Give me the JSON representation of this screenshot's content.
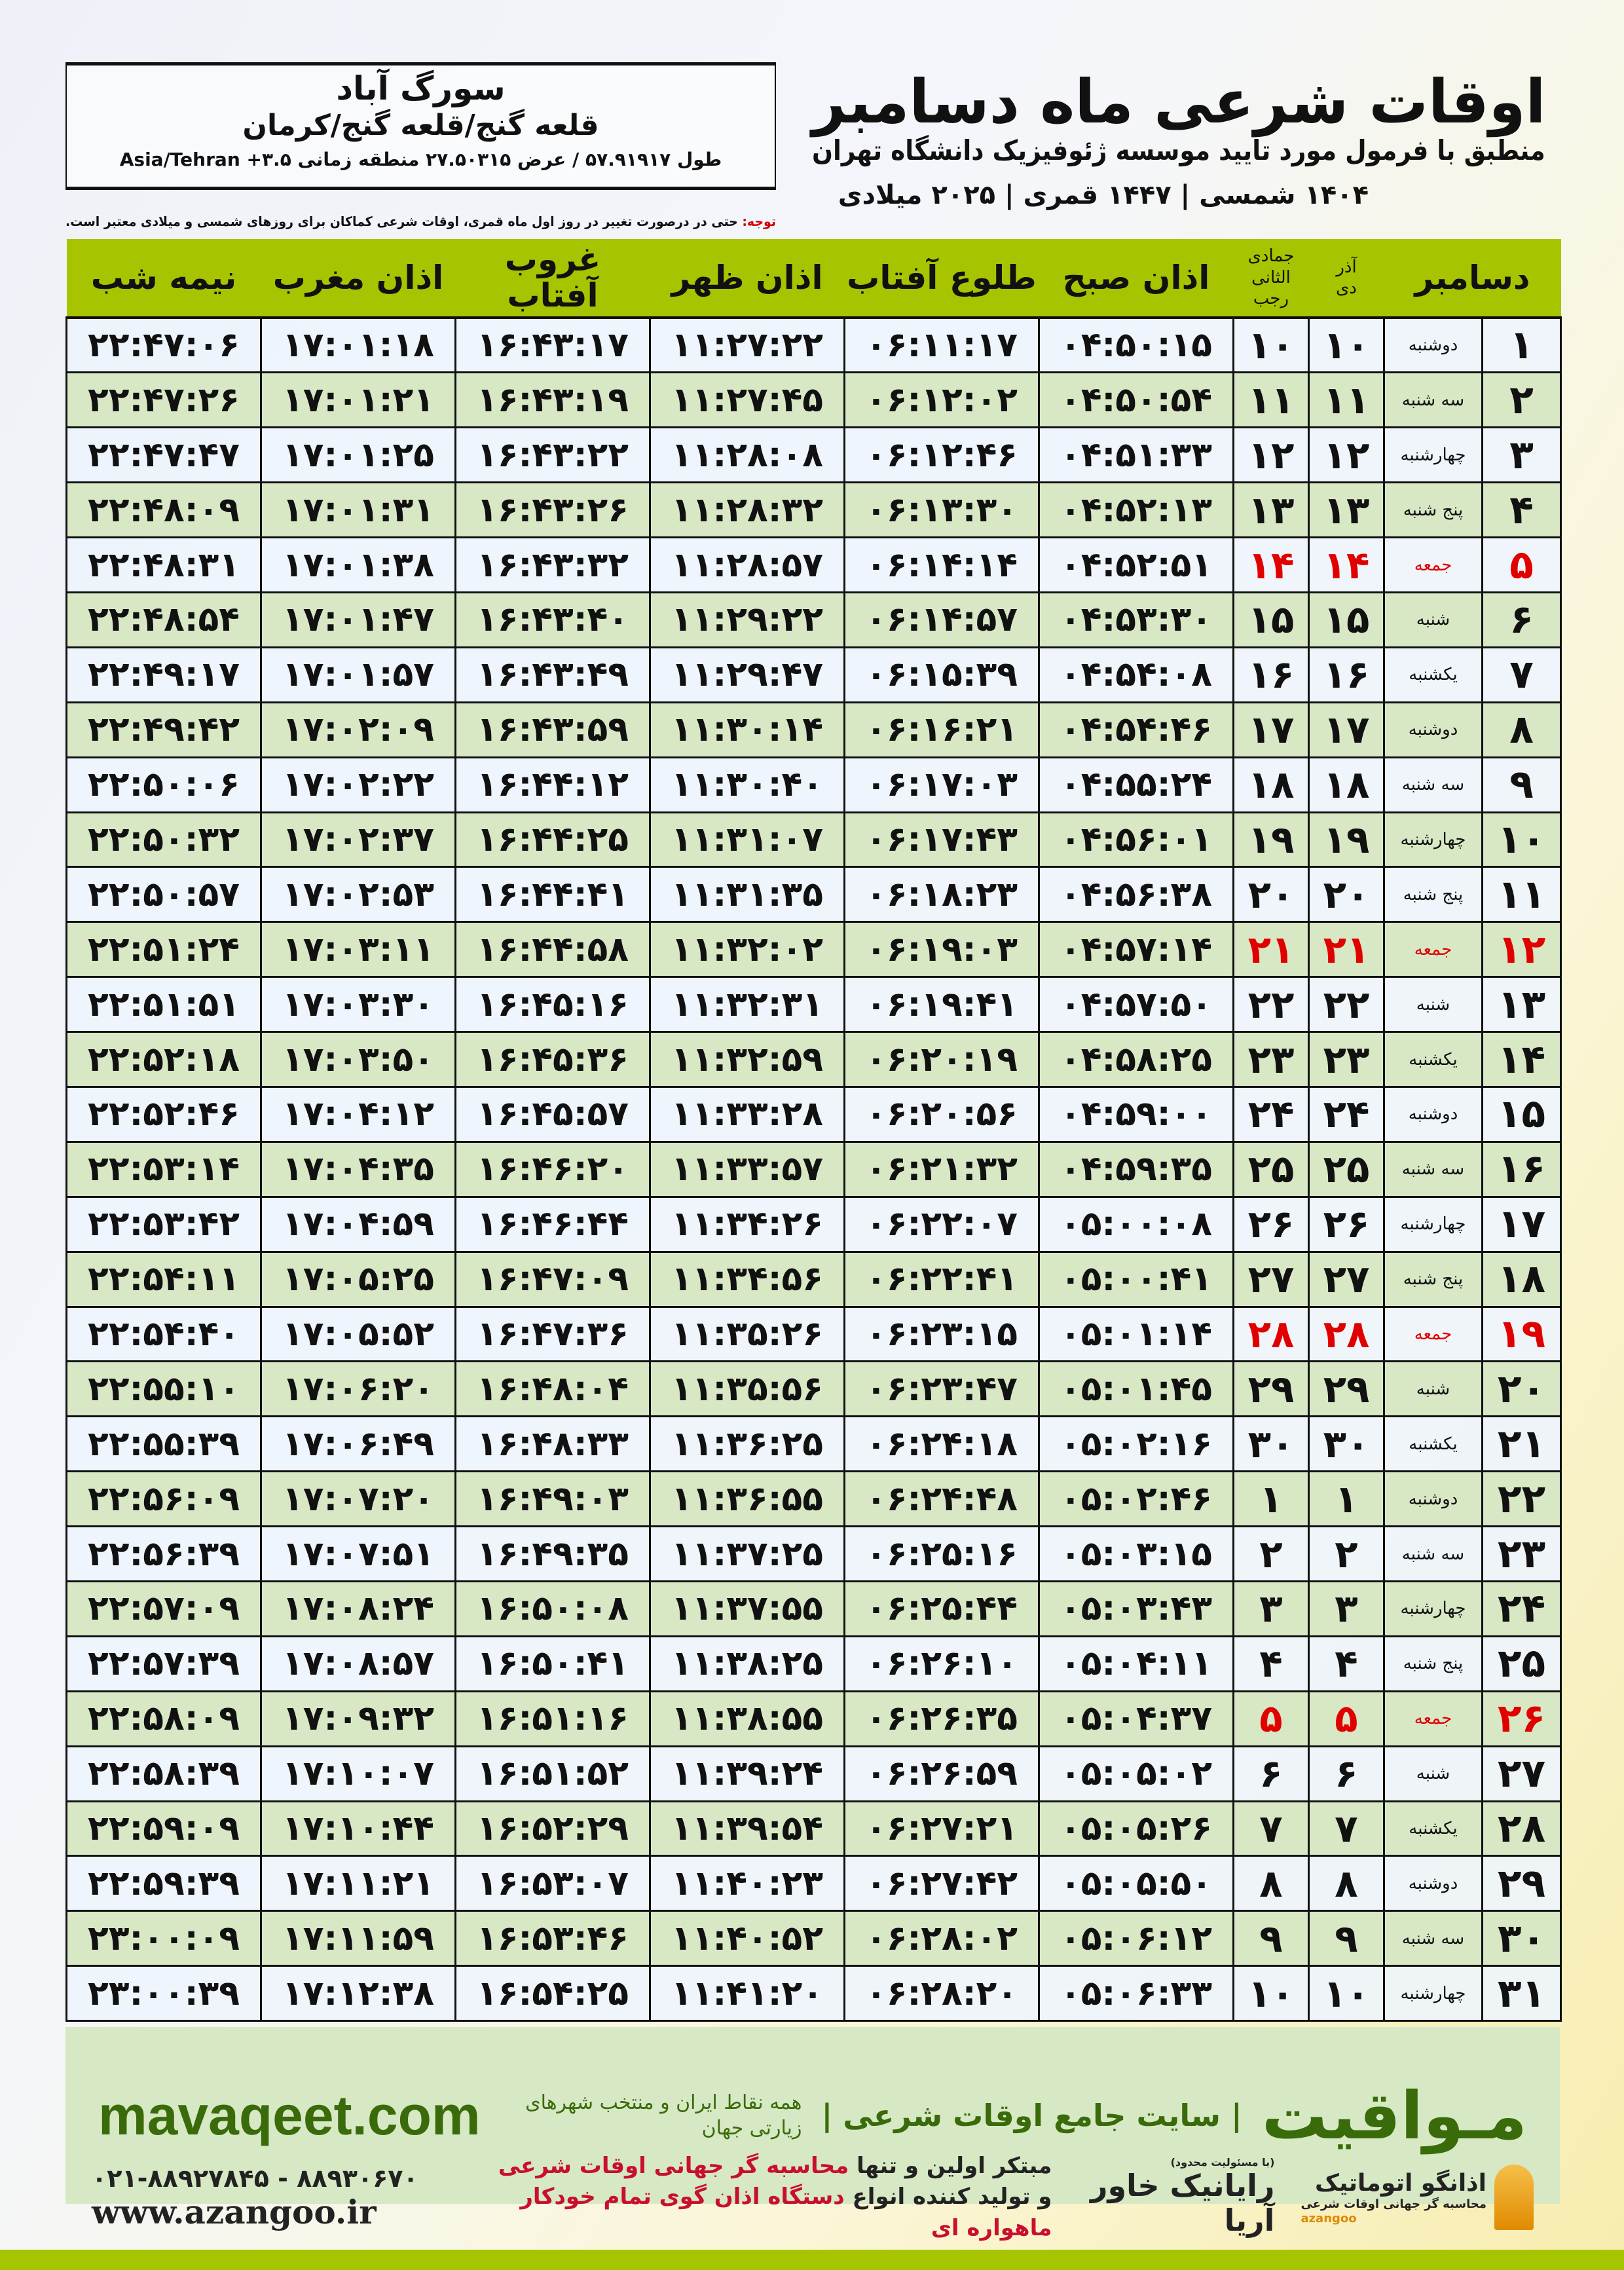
{
  "header": {
    "title": "اوقات شرعی ماه دسامبر",
    "subtitle": "منطبق با فرمول مورد تایید موسسه ژئوفیزیک دانشگاه تهران",
    "dates": "۱۴۰۴ شمسی | ۱۴۴۷ قمری | ۲۰۲۵ میلادی"
  },
  "location": {
    "city": "سورگ آباد",
    "province": "قلعه گنج/قلعه گنج/کرمان",
    "coords": "طول ۵۷.۹۱۹۱۷ / عرض ۲۷.۵۰۳۱۵ منطقه زمانی ۳.۵+ Asia/Tehran"
  },
  "note": {
    "label": "توجه:",
    "text": " حتی در درصورت تغییر در روز اول ماه قمری، اوقات شرعی کماکان برای روزهای شمسی و میلادی معتبر است."
  },
  "table": {
    "headers": {
      "month": "دسامبر",
      "solar_top": "آذر",
      "solar_bottom": "دی",
      "lunar_top": "جمادی الثانی",
      "lunar_bottom": "رجب",
      "fajr": "اذان صبح",
      "sunrise": "طلوع آفتاب",
      "dhuhr": "اذان ظهر",
      "sunset": "غروب آفتاب",
      "maghrib": "اذان مغرب",
      "midnight": "نیمه شب"
    },
    "holiday_color": "#e00000",
    "rows": [
      {
        "day": "۱",
        "weekday": "دوشنبه",
        "solar": "۱۰",
        "lunar": "۱۰",
        "fajr": "۰۴:۵۰:۱۵",
        "sunrise": "۰۶:۱۱:۱۷",
        "dhuhr": "۱۱:۲۷:۲۲",
        "sunset": "۱۶:۴۳:۱۷",
        "maghrib": "۱۷:۰۱:۱۸",
        "midnight": "۲۲:۴۷:۰۶"
      },
      {
        "day": "۲",
        "weekday": "سه شنبه",
        "solar": "۱۱",
        "lunar": "۱۱",
        "fajr": "۰۴:۵۰:۵۴",
        "sunrise": "۰۶:۱۲:۰۲",
        "dhuhr": "۱۱:۲۷:۴۵",
        "sunset": "۱۶:۴۳:۱۹",
        "maghrib": "۱۷:۰۱:۲۱",
        "midnight": "۲۲:۴۷:۲۶"
      },
      {
        "day": "۳",
        "weekday": "چهارشنبه",
        "solar": "۱۲",
        "lunar": "۱۲",
        "fajr": "۰۴:۵۱:۳۳",
        "sunrise": "۰۶:۱۲:۴۶",
        "dhuhr": "۱۱:۲۸:۰۸",
        "sunset": "۱۶:۴۳:۲۲",
        "maghrib": "۱۷:۰۱:۲۵",
        "midnight": "۲۲:۴۷:۴۷"
      },
      {
        "day": "۴",
        "weekday": "پنج شنبه",
        "solar": "۱۳",
        "lunar": "۱۳",
        "fajr": "۰۴:۵۲:۱۳",
        "sunrise": "۰۶:۱۳:۳۰",
        "dhuhr": "۱۱:۲۸:۳۲",
        "sunset": "۱۶:۴۳:۲۶",
        "maghrib": "۱۷:۰۱:۳۱",
        "midnight": "۲۲:۴۸:۰۹"
      },
      {
        "day": "۵",
        "weekday": "جمعه",
        "holiday": true,
        "solar": "۱۴",
        "lunar": "۱۴",
        "fajr": "۰۴:۵۲:۵۱",
        "sunrise": "۰۶:۱۴:۱۴",
        "dhuhr": "۱۱:۲۸:۵۷",
        "sunset": "۱۶:۴۳:۳۲",
        "maghrib": "۱۷:۰۱:۳۸",
        "midnight": "۲۲:۴۸:۳۱"
      },
      {
        "day": "۶",
        "weekday": "شنبه",
        "solar": "۱۵",
        "lunar": "۱۵",
        "fajr": "۰۴:۵۳:۳۰",
        "sunrise": "۰۶:۱۴:۵۷",
        "dhuhr": "۱۱:۲۹:۲۲",
        "sunset": "۱۶:۴۳:۴۰",
        "maghrib": "۱۷:۰۱:۴۷",
        "midnight": "۲۲:۴۸:۵۴"
      },
      {
        "day": "۷",
        "weekday": "یکشنبه",
        "solar": "۱۶",
        "lunar": "۱۶",
        "fajr": "۰۴:۵۴:۰۸",
        "sunrise": "۰۶:۱۵:۳۹",
        "dhuhr": "۱۱:۲۹:۴۷",
        "sunset": "۱۶:۴۳:۴۹",
        "maghrib": "۱۷:۰۱:۵۷",
        "midnight": "۲۲:۴۹:۱۷"
      },
      {
        "day": "۸",
        "weekday": "دوشنبه",
        "solar": "۱۷",
        "lunar": "۱۷",
        "fajr": "۰۴:۵۴:۴۶",
        "sunrise": "۰۶:۱۶:۲۱",
        "dhuhr": "۱۱:۳۰:۱۴",
        "sunset": "۱۶:۴۳:۵۹",
        "maghrib": "۱۷:۰۲:۰۹",
        "midnight": "۲۲:۴۹:۴۲"
      },
      {
        "day": "۹",
        "weekday": "سه شنبه",
        "solar": "۱۸",
        "lunar": "۱۸",
        "fajr": "۰۴:۵۵:۲۴",
        "sunrise": "۰۶:۱۷:۰۳",
        "dhuhr": "۱۱:۳۰:۴۰",
        "sunset": "۱۶:۴۴:۱۲",
        "maghrib": "۱۷:۰۲:۲۲",
        "midnight": "۲۲:۵۰:۰۶"
      },
      {
        "day": "۱۰",
        "weekday": "چهارشنبه",
        "solar": "۱۹",
        "lunar": "۱۹",
        "fajr": "۰۴:۵۶:۰۱",
        "sunrise": "۰۶:۱۷:۴۳",
        "dhuhr": "۱۱:۳۱:۰۷",
        "sunset": "۱۶:۴۴:۲۵",
        "maghrib": "۱۷:۰۲:۳۷",
        "midnight": "۲۲:۵۰:۳۲"
      },
      {
        "day": "۱۱",
        "weekday": "پنج شنبه",
        "solar": "۲۰",
        "lunar": "۲۰",
        "fajr": "۰۴:۵۶:۳۸",
        "sunrise": "۰۶:۱۸:۲۳",
        "dhuhr": "۱۱:۳۱:۳۵",
        "sunset": "۱۶:۴۴:۴۱",
        "maghrib": "۱۷:۰۲:۵۳",
        "midnight": "۲۲:۵۰:۵۷"
      },
      {
        "day": "۱۲",
        "weekday": "جمعه",
        "holiday": true,
        "solar": "۲۱",
        "lunar": "۲۱",
        "fajr": "۰۴:۵۷:۱۴",
        "sunrise": "۰۶:۱۹:۰۳",
        "dhuhr": "۱۱:۳۲:۰۲",
        "sunset": "۱۶:۴۴:۵۸",
        "maghrib": "۱۷:۰۳:۱۱",
        "midnight": "۲۲:۵۱:۲۴"
      },
      {
        "day": "۱۳",
        "weekday": "شنبه",
        "solar": "۲۲",
        "lunar": "۲۲",
        "fajr": "۰۴:۵۷:۵۰",
        "sunrise": "۰۶:۱۹:۴۱",
        "dhuhr": "۱۱:۳۲:۳۱",
        "sunset": "۱۶:۴۵:۱۶",
        "maghrib": "۱۷:۰۳:۳۰",
        "midnight": "۲۲:۵۱:۵۱"
      },
      {
        "day": "۱۴",
        "weekday": "یکشنبه",
        "solar": "۲۳",
        "lunar": "۲۳",
        "fajr": "۰۴:۵۸:۲۵",
        "sunrise": "۰۶:۲۰:۱۹",
        "dhuhr": "۱۱:۳۲:۵۹",
        "sunset": "۱۶:۴۵:۳۶",
        "maghrib": "۱۷:۰۳:۵۰",
        "midnight": "۲۲:۵۲:۱۸"
      },
      {
        "day": "۱۵",
        "weekday": "دوشنبه",
        "solar": "۲۴",
        "lunar": "۲۴",
        "fajr": "۰۴:۵۹:۰۰",
        "sunrise": "۰۶:۲۰:۵۶",
        "dhuhr": "۱۱:۳۳:۲۸",
        "sunset": "۱۶:۴۵:۵۷",
        "maghrib": "۱۷:۰۴:۱۲",
        "midnight": "۲۲:۵۲:۴۶"
      },
      {
        "day": "۱۶",
        "weekday": "سه شنبه",
        "solar": "۲۵",
        "lunar": "۲۵",
        "fajr": "۰۴:۵۹:۳۵",
        "sunrise": "۰۶:۲۱:۳۲",
        "dhuhr": "۱۱:۳۳:۵۷",
        "sunset": "۱۶:۴۶:۲۰",
        "maghrib": "۱۷:۰۴:۳۵",
        "midnight": "۲۲:۵۳:۱۴"
      },
      {
        "day": "۱۷",
        "weekday": "چهارشنبه",
        "solar": "۲۶",
        "lunar": "۲۶",
        "fajr": "۰۵:۰۰:۰۸",
        "sunrise": "۰۶:۲۲:۰۷",
        "dhuhr": "۱۱:۳۴:۲۶",
        "sunset": "۱۶:۴۶:۴۴",
        "maghrib": "۱۷:۰۴:۵۹",
        "midnight": "۲۲:۵۳:۴۲"
      },
      {
        "day": "۱۸",
        "weekday": "پنج شنبه",
        "solar": "۲۷",
        "lunar": "۲۷",
        "fajr": "۰۵:۰۰:۴۱",
        "sunrise": "۰۶:۲۲:۴۱",
        "dhuhr": "۱۱:۳۴:۵۶",
        "sunset": "۱۶:۴۷:۰۹",
        "maghrib": "۱۷:۰۵:۲۵",
        "midnight": "۲۲:۵۴:۱۱"
      },
      {
        "day": "۱۹",
        "weekday": "جمعه",
        "holiday": true,
        "solar": "۲۸",
        "lunar": "۲۸",
        "fajr": "۰۵:۰۱:۱۴",
        "sunrise": "۰۶:۲۳:۱۵",
        "dhuhr": "۱۱:۳۵:۲۶",
        "sunset": "۱۶:۴۷:۳۶",
        "maghrib": "۱۷:۰۵:۵۲",
        "midnight": "۲۲:۵۴:۴۰"
      },
      {
        "day": "۲۰",
        "weekday": "شنبه",
        "solar": "۲۹",
        "lunar": "۲۹",
        "fajr": "۰۵:۰۱:۴۵",
        "sunrise": "۰۶:۲۳:۴۷",
        "dhuhr": "۱۱:۳۵:۵۶",
        "sunset": "۱۶:۴۸:۰۴",
        "maghrib": "۱۷:۰۶:۲۰",
        "midnight": "۲۲:۵۵:۱۰"
      },
      {
        "day": "۲۱",
        "weekday": "یکشنبه",
        "solar": "۳۰",
        "lunar": "۳۰",
        "fajr": "۰۵:۰۲:۱۶",
        "sunrise": "۰۶:۲۴:۱۸",
        "dhuhr": "۱۱:۳۶:۲۵",
        "sunset": "۱۶:۴۸:۳۳",
        "maghrib": "۱۷:۰۶:۴۹",
        "midnight": "۲۲:۵۵:۳۹"
      },
      {
        "day": "۲۲",
        "weekday": "دوشنبه",
        "solar": "۱",
        "lunar": "۱",
        "fajr": "۰۵:۰۲:۴۶",
        "sunrise": "۰۶:۲۴:۴۸",
        "dhuhr": "۱۱:۳۶:۵۵",
        "sunset": "۱۶:۴۹:۰۳",
        "maghrib": "۱۷:۰۷:۲۰",
        "midnight": "۲۲:۵۶:۰۹"
      },
      {
        "day": "۲۳",
        "weekday": "سه شنبه",
        "solar": "۲",
        "lunar": "۲",
        "fajr": "۰۵:۰۳:۱۵",
        "sunrise": "۰۶:۲۵:۱۶",
        "dhuhr": "۱۱:۳۷:۲۵",
        "sunset": "۱۶:۴۹:۳۵",
        "maghrib": "۱۷:۰۷:۵۱",
        "midnight": "۲۲:۵۶:۳۹"
      },
      {
        "day": "۲۴",
        "weekday": "چهارشنبه",
        "solar": "۳",
        "lunar": "۳",
        "fajr": "۰۵:۰۳:۴۳",
        "sunrise": "۰۶:۲۵:۴۴",
        "dhuhr": "۱۱:۳۷:۵۵",
        "sunset": "۱۶:۵۰:۰۸",
        "maghrib": "۱۷:۰۸:۲۴",
        "midnight": "۲۲:۵۷:۰۹"
      },
      {
        "day": "۲۵",
        "weekday": "پنج شنبه",
        "solar": "۴",
        "lunar": "۴",
        "fajr": "۰۵:۰۴:۱۱",
        "sunrise": "۰۶:۲۶:۱۰",
        "dhuhr": "۱۱:۳۸:۲۵",
        "sunset": "۱۶:۵۰:۴۱",
        "maghrib": "۱۷:۰۸:۵۷",
        "midnight": "۲۲:۵۷:۳۹"
      },
      {
        "day": "۲۶",
        "weekday": "جمعه",
        "holiday": true,
        "solar": "۵",
        "lunar": "۵",
        "fajr": "۰۵:۰۴:۳۷",
        "sunrise": "۰۶:۲۶:۳۵",
        "dhuhr": "۱۱:۳۸:۵۵",
        "sunset": "۱۶:۵۱:۱۶",
        "maghrib": "۱۷:۰۹:۳۲",
        "midnight": "۲۲:۵۸:۰۹"
      },
      {
        "day": "۲۷",
        "weekday": "شنبه",
        "solar": "۶",
        "lunar": "۶",
        "fajr": "۰۵:۰۵:۰۲",
        "sunrise": "۰۶:۲۶:۵۹",
        "dhuhr": "۱۱:۳۹:۲۴",
        "sunset": "۱۶:۵۱:۵۲",
        "maghrib": "۱۷:۱۰:۰۷",
        "midnight": "۲۲:۵۸:۳۹"
      },
      {
        "day": "۲۸",
        "weekday": "یکشنبه",
        "solar": "۷",
        "lunar": "۷",
        "fajr": "۰۵:۰۵:۲۶",
        "sunrise": "۰۶:۲۷:۲۱",
        "dhuhr": "۱۱:۳۹:۵۴",
        "sunset": "۱۶:۵۲:۲۹",
        "maghrib": "۱۷:۱۰:۴۴",
        "midnight": "۲۲:۵۹:۰۹"
      },
      {
        "day": "۲۹",
        "weekday": "دوشنبه",
        "solar": "۸",
        "lunar": "۸",
        "fajr": "۰۵:۰۵:۵۰",
        "sunrise": "۰۶:۲۷:۴۲",
        "dhuhr": "۱۱:۴۰:۲۳",
        "sunset": "۱۶:۵۳:۰۷",
        "maghrib": "۱۷:۱۱:۲۱",
        "midnight": "۲۲:۵۹:۳۹"
      },
      {
        "day": "۳۰",
        "weekday": "سه شنبه",
        "solar": "۹",
        "lunar": "۹",
        "fajr": "۰۵:۰۶:۱۲",
        "sunrise": "۰۶:۲۸:۰۲",
        "dhuhr": "۱۱:۴۰:۵۲",
        "sunset": "۱۶:۵۳:۴۶",
        "maghrib": "۱۷:۱۱:۵۹",
        "midnight": "۲۳:۰۰:۰۹"
      },
      {
        "day": "۳۱",
        "weekday": "چهارشنبه",
        "solar": "۱۰",
        "lunar": "۱۰",
        "fajr": "۰۵:۰۶:۳۳",
        "sunrise": "۰۶:۲۸:۲۰",
        "dhuhr": "۱۱:۴۱:۲۰",
        "sunset": "۱۶:۵۴:۲۵",
        "maghrib": "۱۷:۱۲:۳۸",
        "midnight": "۲۳:۰۰:۳۹"
      }
    ]
  },
  "footer": {
    "logo": "مـواقیت",
    "slogan": "| سایت جامع اوقات شرعی |",
    "slogan2": "همه نقاط ایران و منتخب شهرهای زیارتی جهان",
    "url": "mavaqeet.com",
    "phone": "۰۲۱-۸۸۹۲۷۸۴۵ - ۸۸۹۳۰۶۷۰",
    "website": "www.azangoo.ir",
    "promo_line1_a": "مبتکر اولین و تنها ",
    "promo_line1_b": "محاسبه گر جهانی اوقات شرعی",
    "promo_line2_a": "و تولید کننده انواع ",
    "promo_line2_b": "دستگاه اذان گوی تمام خودکار ماهواره ای",
    "brand1": "رایانیک خاور آریا",
    "brand1_tag": "(با مسئولیت محدود)",
    "brand2": "اذانگو اتوماتیک",
    "brand2_sub": "محاسبه گر جهانی اوقات شرعی",
    "brand2_en": "azangoo",
    "accent_green": "#a6c400",
    "band_color": "#d7e8c4"
  }
}
